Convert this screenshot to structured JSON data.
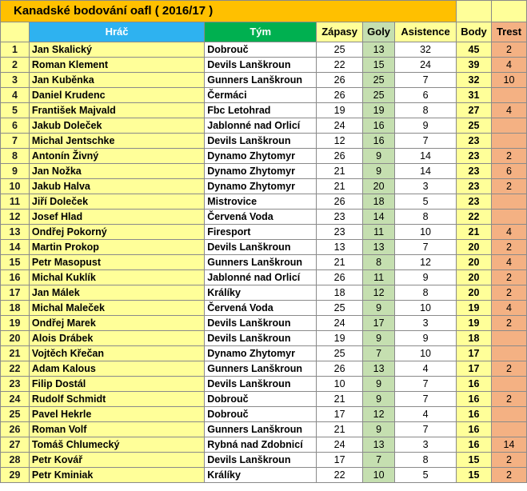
{
  "title": "Kanadské bodování oafl  ( 2016/17 )",
  "headers": {
    "rank": "",
    "player": "Hráč",
    "team": "Tým",
    "matches": "Zápasy",
    "goals": "Goly",
    "assists": "Asistence",
    "points": "Body",
    "penalty": "Trest"
  },
  "colors": {
    "title_bg": "#ffc000",
    "player_header_bg": "#2eb2f0",
    "team_header_bg": "#00b050",
    "goals_bg": "#c5dfb0",
    "points_bg": "#ffff99",
    "penalty_bg": "#f4b183"
  },
  "rows": [
    {
      "rank": "1",
      "player": "Jan Skalický",
      "team": "Dobrouč",
      "matches": "25",
      "goals": "13",
      "assists": "32",
      "points": "45",
      "penalty": "2"
    },
    {
      "rank": "2",
      "player": "Roman Klement",
      "team": "Devils Lanškroun",
      "matches": "22",
      "goals": "15",
      "assists": "24",
      "points": "39",
      "penalty": "4"
    },
    {
      "rank": "3",
      "player": "Jan Kuběnka",
      "team": "Gunners Lanškroun",
      "matches": "26",
      "goals": "25",
      "assists": "7",
      "points": "32",
      "penalty": "10"
    },
    {
      "rank": "4",
      "player": "Daniel Krudenc",
      "team": "Čermáci",
      "matches": "26",
      "goals": "25",
      "assists": "6",
      "points": "31",
      "penalty": ""
    },
    {
      "rank": "5",
      "player": "František Majvald",
      "team": "Fbc Letohrad",
      "matches": "19",
      "goals": "19",
      "assists": "8",
      "points": "27",
      "penalty": "4"
    },
    {
      "rank": "6",
      "player": "Jakub Doleček",
      "team": "Jablonné nad Orlicí",
      "matches": "24",
      "goals": "16",
      "assists": "9",
      "points": "25",
      "penalty": ""
    },
    {
      "rank": "7",
      "player": "Michal Jentschke",
      "team": "Devils Lanškroun",
      "matches": "12",
      "goals": "16",
      "assists": "7",
      "points": "23",
      "penalty": ""
    },
    {
      "rank": "8",
      "player": "Antonín Živný",
      "team": "Dynamo Zhytomyr",
      "matches": "26",
      "goals": "9",
      "assists": "14",
      "points": "23",
      "penalty": "2"
    },
    {
      "rank": "9",
      "player": "Jan Nožka",
      "team": "Dynamo Zhytomyr",
      "matches": "21",
      "goals": "9",
      "assists": "14",
      "points": "23",
      "penalty": "6"
    },
    {
      "rank": "10",
      "player": "Jakub Halva",
      "team": "Dynamo Zhytomyr",
      "matches": "21",
      "goals": "20",
      "assists": "3",
      "points": "23",
      "penalty": "2"
    },
    {
      "rank": "11",
      "player": "Jiří Doleček",
      "team": "Mistrovice",
      "matches": "26",
      "goals": "18",
      "assists": "5",
      "points": "23",
      "penalty": ""
    },
    {
      "rank": "12",
      "player": "Josef Hlad",
      "team": "Červená Voda",
      "matches": "23",
      "goals": "14",
      "assists": "8",
      "points": "22",
      "penalty": ""
    },
    {
      "rank": "13",
      "player": "Ondřej Pokorný",
      "team": "Firesport",
      "matches": "23",
      "goals": "11",
      "assists": "10",
      "points": "21",
      "penalty": "4"
    },
    {
      "rank": "14",
      "player": "Martin Prokop",
      "team": "Devils Lanškroun",
      "matches": "13",
      "goals": "13",
      "assists": "7",
      "points": "20",
      "penalty": "2"
    },
    {
      "rank": "15",
      "player": "Petr Masopust",
      "team": "Gunners Lanškroun",
      "matches": "21",
      "goals": "8",
      "assists": "12",
      "points": "20",
      "penalty": "4"
    },
    {
      "rank": "16",
      "player": "Michal Kuklík",
      "team": "Jablonné nad Orlicí",
      "matches": "26",
      "goals": "11",
      "assists": "9",
      "points": "20",
      "penalty": "2"
    },
    {
      "rank": "17",
      "player": "Jan Málek",
      "team": "Králíky",
      "matches": "18",
      "goals": "12",
      "assists": "8",
      "points": "20",
      "penalty": "2"
    },
    {
      "rank": "18",
      "player": "Michal Maleček",
      "team": "Červená Voda",
      "matches": "25",
      "goals": "9",
      "assists": "10",
      "points": "19",
      "penalty": "4"
    },
    {
      "rank": "19",
      "player": "Ondřej Marek",
      "team": "Devils Lanškroun",
      "matches": "24",
      "goals": "17",
      "assists": "3",
      "points": "19",
      "penalty": "2"
    },
    {
      "rank": "20",
      "player": "Alois Drábek",
      "team": "Devils Lanškroun",
      "matches": "19",
      "goals": "9",
      "assists": "9",
      "points": "18",
      "penalty": ""
    },
    {
      "rank": "21",
      "player": "Vojtěch Křečan",
      "team": "Dynamo Zhytomyr",
      "matches": "25",
      "goals": "7",
      "assists": "10",
      "points": "17",
      "penalty": ""
    },
    {
      "rank": "22",
      "player": "Adam Kalous",
      "team": "Gunners Lanškroun",
      "matches": "26",
      "goals": "13",
      "assists": "4",
      "points": "17",
      "penalty": "2"
    },
    {
      "rank": "23",
      "player": "Filip Dostál",
      "team": "Devils Lanškroun",
      "matches": "10",
      "goals": "9",
      "assists": "7",
      "points": "16",
      "penalty": ""
    },
    {
      "rank": "24",
      "player": "Rudolf Schmidt",
      "team": "Dobrouč",
      "matches": "21",
      "goals": "9",
      "assists": "7",
      "points": "16",
      "penalty": "2"
    },
    {
      "rank": "25",
      "player": "Pavel Hekrle",
      "team": "Dobrouč",
      "matches": "17",
      "goals": "12",
      "assists": "4",
      "points": "16",
      "penalty": ""
    },
    {
      "rank": "26",
      "player": "Roman Volf",
      "team": "Gunners Lanškroun",
      "matches": "21",
      "goals": "9",
      "assists": "7",
      "points": "16",
      "penalty": ""
    },
    {
      "rank": "27",
      "player": "Tomáš Chlumecký",
      "team": "Rybná nad Zdobnicí",
      "matches": "24",
      "goals": "13",
      "assists": "3",
      "points": "16",
      "penalty": "14"
    },
    {
      "rank": "28",
      "player": "Petr Kovář",
      "team": "Devils Lanškroun",
      "matches": "17",
      "goals": "7",
      "assists": "8",
      "points": "15",
      "penalty": "2"
    },
    {
      "rank": "29",
      "player": "Petr Kminiak",
      "team": "Králíky",
      "matches": "22",
      "goals": "10",
      "assists": "5",
      "points": "15",
      "penalty": "2"
    }
  ]
}
